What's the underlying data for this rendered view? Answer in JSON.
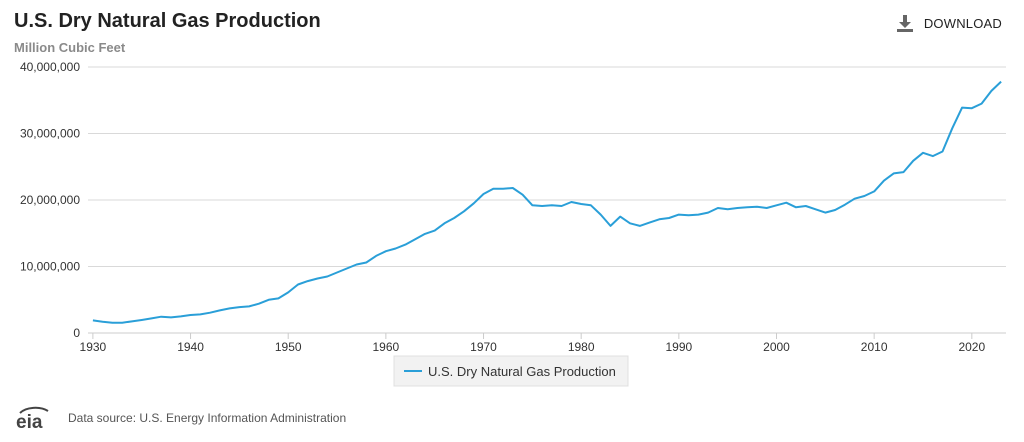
{
  "header": {
    "title": "U.S. Dry Natural Gas Production",
    "subtitle": "Million Cubic Feet",
    "download_label": "DOWNLOAD"
  },
  "footer": {
    "logo_text": "eia",
    "source": "Data source: U.S. Energy Information Administration"
  },
  "colors": {
    "series": "#2a9fd8",
    "grid": "#d9d9d9",
    "axis": "#cccccc"
  },
  "chart_data": {
    "type": "line",
    "title": "U.S. Dry Natural Gas Production",
    "ylabel": "Million Cubic Feet",
    "xlabel": "",
    "xlim": [
      1929.5,
      2023.5
    ],
    "ylim": [
      0,
      40000000
    ],
    "x_ticks": [
      1930,
      1940,
      1950,
      1960,
      1970,
      1980,
      1990,
      2000,
      2010,
      2020
    ],
    "y_ticks": [
      0,
      10000000,
      20000000,
      30000000,
      40000000
    ],
    "y_tick_labels": [
      "0",
      "10,000,000",
      "20,000,000",
      "30,000,000",
      "40,000,000"
    ],
    "grid": "horizontal",
    "legend_position": "bottom-center",
    "series": [
      {
        "name": "U.S. Dry Natural Gas Production",
        "color": "#2a9fd8",
        "x": [
          1930,
          1931,
          1932,
          1933,
          1934,
          1935,
          1936,
          1937,
          1938,
          1939,
          1940,
          1941,
          1942,
          1943,
          1944,
          1945,
          1946,
          1947,
          1948,
          1949,
          1950,
          1951,
          1952,
          1953,
          1954,
          1955,
          1956,
          1957,
          1958,
          1959,
          1960,
          1961,
          1962,
          1963,
          1964,
          1965,
          1966,
          1967,
          1968,
          1969,
          1970,
          1971,
          1972,
          1973,
          1974,
          1975,
          1976,
          1977,
          1978,
          1979,
          1980,
          1981,
          1982,
          1983,
          1984,
          1985,
          1986,
          1987,
          1988,
          1989,
          1990,
          1991,
          1992,
          1993,
          1994,
          1995,
          1996,
          1997,
          1998,
          1999,
          2000,
          2001,
          2002,
          2003,
          2004,
          2005,
          2006,
          2007,
          2008,
          2009,
          2010,
          2011,
          2012,
          2013,
          2014,
          2015,
          2016,
          2017,
          2018,
          2019,
          2020,
          2021,
          2022,
          2023
        ],
        "values": [
          1900000,
          1700000,
          1550000,
          1550000,
          1750000,
          1950000,
          2200000,
          2450000,
          2350000,
          2500000,
          2700000,
          2800000,
          3050000,
          3400000,
          3700000,
          3900000,
          4000000,
          4400000,
          5000000,
          5200000,
          6100000,
          7300000,
          7800000,
          8200000,
          8500000,
          9100000,
          9700000,
          10300000,
          10600000,
          11600000,
          12300000,
          12700000,
          13300000,
          14100000,
          14900000,
          15400000,
          16500000,
          17300000,
          18300000,
          19500000,
          20900000,
          21700000,
          21700000,
          21800000,
          20800000,
          19200000,
          19100000,
          19200000,
          19100000,
          19700000,
          19400000,
          19200000,
          17800000,
          16100000,
          17500000,
          16500000,
          16100000,
          16600000,
          17100000,
          17300000,
          17800000,
          17700000,
          17800000,
          18100000,
          18800000,
          18600000,
          18800000,
          18900000,
          19000000,
          18800000,
          19200000,
          19600000,
          18900000,
          19100000,
          18600000,
          18100000,
          18500000,
          19300000,
          20200000,
          20600000,
          21300000,
          22900000,
          24000000,
          24200000,
          25900000,
          27100000,
          26600000,
          27300000,
          30800000,
          33900000,
          33800000,
          34500000,
          36400000,
          37800000
        ]
      }
    ]
  }
}
